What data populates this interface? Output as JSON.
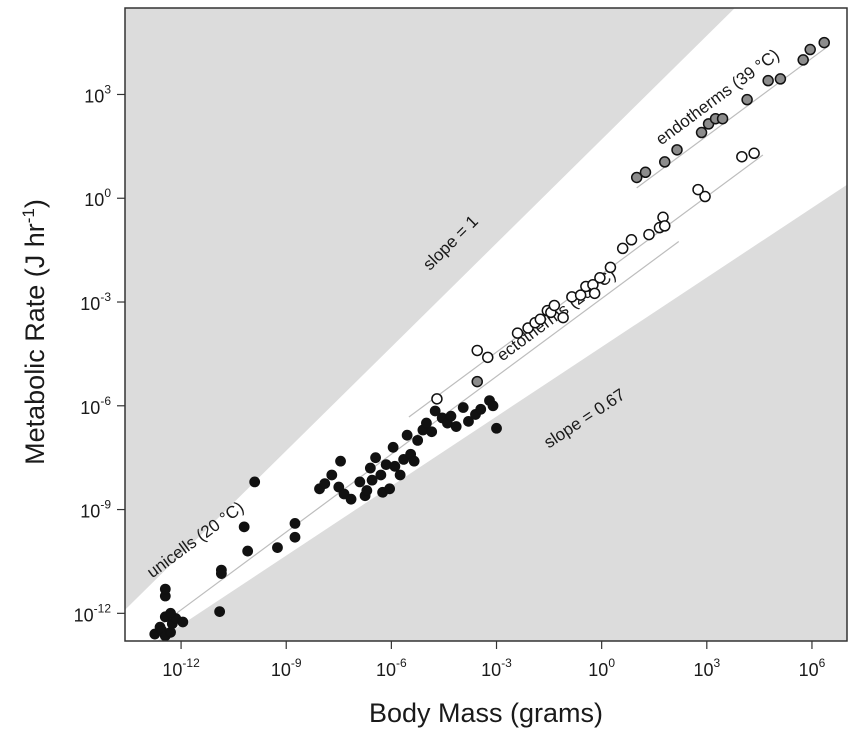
{
  "chart_data": {
    "type": "scatter",
    "title": "",
    "xlabel": "Body Mass (grams)",
    "ylabel": "Metabolic Rate (J hr-1)",
    "ylabel_parts": {
      "main": "Metabolic Rate (J hr",
      "sup": "-1",
      "close": ")"
    },
    "x_scale": "log10",
    "y_scale": "log10",
    "xlim_exp": [
      -13.6,
      7.0
    ],
    "ylim_exp": [
      -12.8,
      5.5
    ],
    "x_tick_exponents": [
      -12,
      -9,
      -6,
      -3,
      0,
      3,
      6
    ],
    "y_tick_exponents": [
      -12,
      -9,
      -6,
      -3,
      0,
      3
    ],
    "tick_base": "10",
    "grid": false,
    "colors": {
      "shade": "#dcdcdc",
      "frame": "#333333",
      "fitline": "#bdbdbd",
      "unicells": "#111111",
      "ectotherms": "#ffffff",
      "endotherms": "#8c8c8c",
      "point_edge": "#111111"
    },
    "shaded_bands": {
      "upper_line": {
        "slope": 1,
        "intercept_exp": 1.7
      },
      "lower_line": {
        "slope": 0.67,
        "intercept_exp": -4.3
      }
    },
    "fit_lines": [
      {
        "group": "unicells+ectotherms",
        "slope": 0.75,
        "intercept_exp": -2.9,
        "x_range_exp": [
          -12.6,
          2.2
        ]
      },
      {
        "group": "ectotherms",
        "slope": 0.75,
        "intercept_exp": -2.2,
        "x_range_exp": [
          -5.5,
          4.6
        ]
      },
      {
        "group": "endotherms",
        "slope": 0.75,
        "intercept_exp": -0.45,
        "x_range_exp": [
          1.0,
          6.5
        ]
      }
    ],
    "annotations": [
      {
        "text": "slope = 1",
        "x": -4.2,
        "y": -1.4,
        "angle_slope": 1
      },
      {
        "text": "slope = 0.67",
        "x": -0.4,
        "y": -6.5,
        "angle_slope": 0.67
      },
      {
        "text": "unicells (20 °C)",
        "x": -11.5,
        "y": -10.0,
        "angle_slope": 0.75
      },
      {
        "text": "ectotherms (20 °C)",
        "x": -1.2,
        "y": -3.5,
        "angle_slope": 0.75
      },
      {
        "text": "endotherms (39 °C)",
        "x": 3.4,
        "y": 2.8,
        "angle_slope": 0.75
      }
    ],
    "series": [
      {
        "name": "unicells (20 °C)",
        "x": [
          -12.75,
          -12.6,
          -12.55,
          -12.45,
          -12.3,
          -12.25,
          -12.15,
          -12.45,
          -12.45,
          -12.45,
          -12.3,
          -11.95,
          -10.9,
          -10.85,
          -10.85,
          -10.2,
          -10.1,
          -9.25,
          -9.9,
          -8.75,
          -8.75,
          -8.05,
          -7.9,
          -7.7,
          -7.45,
          -7.5,
          -7.35,
          -7.15,
          -6.9,
          -6.75,
          -6.7,
          -6.6,
          -6.55,
          -6.45,
          -6.3,
          -6.25,
          -6.15,
          -6.05,
          -5.95,
          -5.9,
          -5.75,
          -5.65,
          -5.55,
          -5.45,
          -5.35,
          -5.25,
          -5.1,
          -5.0,
          -4.85,
          -4.75,
          -4.55,
          -4.4,
          -4.3,
          -4.15,
          -3.95,
          -3.8,
          -3.6,
          -3.45,
          -3.2,
          -3.1,
          -3.0
        ],
        "y": [
          -12.6,
          -12.4,
          -12.5,
          -12.65,
          -12.55,
          -12.3,
          -12.15,
          -12.1,
          -11.5,
          -11.3,
          -12.0,
          -12.25,
          -11.95,
          -10.75,
          -10.85,
          -9.5,
          -10.2,
          -10.1,
          -8.2,
          -9.4,
          -9.8,
          -8.4,
          -8.25,
          -8.0,
          -7.6,
          -8.35,
          -8.55,
          -8.7,
          -8.2,
          -8.6,
          -8.45,
          -7.8,
          -8.15,
          -7.5,
          -8.0,
          -8.5,
          -7.7,
          -8.4,
          -7.2,
          -7.75,
          -8.0,
          -7.55,
          -6.85,
          -7.4,
          -7.6,
          -7.0,
          -6.7,
          -6.5,
          -6.75,
          -6.15,
          -6.35,
          -6.5,
          -6.3,
          -6.6,
          -6.05,
          -6.45,
          -6.25,
          -6.1,
          -5.85,
          -6.0,
          -6.65
        ]
      },
      {
        "name": "ectotherms (20 °C)",
        "x": [
          -4.7,
          -3.55,
          -3.25,
          -2.4,
          -2.1,
          -1.9,
          -1.75,
          -1.55,
          -1.45,
          -1.35,
          -1.1,
          -0.85,
          -0.6,
          -0.45,
          -0.25,
          -0.2,
          -0.05,
          0.25,
          0.6,
          0.85,
          1.35,
          1.65,
          1.75,
          1.8,
          2.75,
          2.95,
          4.0,
          4.35
        ],
        "y": [
          -5.8,
          -4.4,
          -4.6,
          -3.9,
          -3.75,
          -3.6,
          -3.5,
          -3.25,
          -3.3,
          -3.1,
          -3.45,
          -2.85,
          -2.8,
          -2.55,
          -2.5,
          -2.75,
          -2.3,
          -2.0,
          -1.45,
          -1.2,
          -1.05,
          -0.85,
          -0.55,
          -0.8,
          0.25,
          0.05,
          1.2,
          1.3
        ]
      },
      {
        "name": "endotherms (39 °C)",
        "x": [
          -3.55,
          1.0,
          1.25,
          1.8,
          2.15,
          2.85,
          3.05,
          3.25,
          3.45,
          4.15,
          4.75,
          5.1,
          5.75,
          5.95,
          6.35
        ],
        "y": [
          -5.3,
          0.6,
          0.75,
          1.05,
          1.4,
          1.9,
          2.15,
          2.3,
          2.3,
          2.85,
          3.4,
          3.45,
          4.0,
          4.3,
          4.5
        ]
      }
    ]
  }
}
